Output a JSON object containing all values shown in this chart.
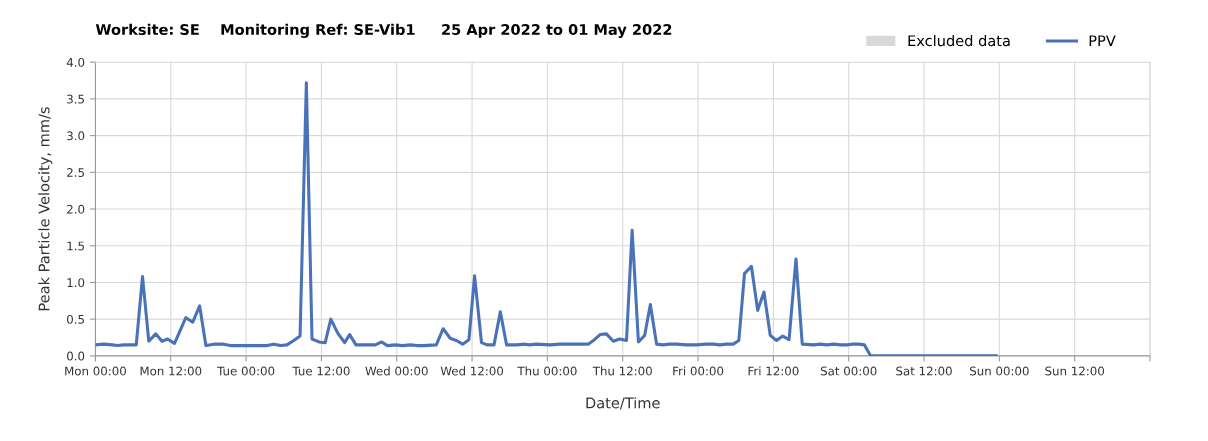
{
  "chart_data": {
    "type": "line",
    "title": "Worksite: SE    Monitoring Ref: SE-Vib1     25 Apr 2022 to 01 May 2022",
    "xlabel": "Date/Time",
    "ylabel": "Peak Particle Velocity, mm/s",
    "xlim": [
      "2022-04-25T00:00",
      "2022-05-02T00:00"
    ],
    "xticks": [
      {
        "value": "2022-04-25T00:00",
        "label": "Mon 00:00"
      },
      {
        "value": "2022-04-25T12:00",
        "label": "Mon 12:00"
      },
      {
        "value": "2022-04-26T00:00",
        "label": "Tue 00:00"
      },
      {
        "value": "2022-04-26T12:00",
        "label": "Tue 12:00"
      },
      {
        "value": "2022-04-27T00:00",
        "label": "Wed 00:00"
      },
      {
        "value": "2022-04-27T12:00",
        "label": "Wed 12:00"
      },
      {
        "value": "2022-04-28T00:00",
        "label": "Thu 00:00"
      },
      {
        "value": "2022-04-28T12:00",
        "label": "Thu 12:00"
      },
      {
        "value": "2022-04-29T00:00",
        "label": "Fri 00:00"
      },
      {
        "value": "2022-04-29T12:00",
        "label": "Fri 12:00"
      },
      {
        "value": "2022-04-30T00:00",
        "label": "Sat 00:00"
      },
      {
        "value": "2022-04-30T12:00",
        "label": "Sat 12:00"
      },
      {
        "value": "2022-05-01T00:00",
        "label": "Sun 00:00"
      },
      {
        "value": "2022-05-01T12:00",
        "label": "Sun 12:00"
      },
      {
        "value": "2022-05-02T00:00",
        "label": null
      }
    ],
    "ylim": [
      0,
      4
    ],
    "yticks": [
      {
        "value": 0,
        "label": "0.0"
      },
      {
        "value": 0.5,
        "label": "0.5"
      },
      {
        "value": 1,
        "label": "1.0"
      },
      {
        "value": 1.5,
        "label": "1.5"
      },
      {
        "value": 2,
        "label": "2.0"
      },
      {
        "value": 2.5,
        "label": "2.5"
      },
      {
        "value": 3,
        "label": "3.0"
      },
      {
        "value": 3.5,
        "label": "3.5"
      },
      {
        "value": 4,
        "label": "4.0"
      }
    ],
    "grid": true,
    "legend": "top right",
    "line_style": "solid",
    "marker": "none",
    "series": [
      {
        "name": "Excluded data",
        "type": "area",
        "color": "#d9d9d9"
      },
      {
        "name": "PPV",
        "color": "#4a72b8",
        "x": [
          "2022-04-25T00:00",
          "2022-04-25T01:18",
          "2022-04-25T02:42",
          "2022-04-25T03:30",
          "2022-04-25T04:30",
          "2022-04-25T06:30",
          "2022-04-25T07:30",
          "2022-04-25T08:30",
          "2022-04-25T09:36",
          "2022-04-25T10:36",
          "2022-04-25T11:30",
          "2022-04-25T12:36",
          "2022-04-25T14:24",
          "2022-04-25T15:30",
          "2022-04-25T16:36",
          "2022-04-25T17:36",
          "2022-04-25T18:54",
          "2022-04-25T20:24",
          "2022-04-25T21:30",
          "2022-04-26T00:12",
          "2022-04-26T03:18",
          "2022-04-26T04:24",
          "2022-04-26T05:30",
          "2022-04-26T06:30",
          "2022-04-26T07:36",
          "2022-04-26T08:36",
          "2022-04-26T09:36",
          "2022-04-26T10:30",
          "2022-04-26T11:36",
          "2022-04-26T12:36",
          "2022-04-26T13:30",
          "2022-04-26T14:36",
          "2022-04-26T15:42",
          "2022-04-26T16:30",
          "2022-04-26T17:30",
          "2022-04-26T19:18",
          "2022-04-26T20:36",
          "2022-04-26T21:36",
          "2022-04-26T22:30",
          "2022-04-26T23:48",
          "2022-04-27T00:54",
          "2022-04-27T02:12",
          "2022-04-27T03:12",
          "2022-04-27T04:18",
          "2022-04-27T06:18",
          "2022-04-27T07:24",
          "2022-04-27T08:30",
          "2022-04-27T09:30",
          "2022-04-27T10:30",
          "2022-04-27T11:30",
          "2022-04-27T12:24",
          "2022-04-27T13:30",
          "2022-04-27T14:24",
          "2022-04-27T15:30",
          "2022-04-27T16:30",
          "2022-04-27T17:30",
          "2022-04-27T19:06",
          "2022-04-27T20:24",
          "2022-04-27T21:12",
          "2022-04-27T22:12",
          "2022-04-28T00:24",
          "2022-04-28T02:00",
          "2022-04-28T04:36",
          "2022-04-28T06:30",
          "2022-04-28T07:30",
          "2022-04-28T08:24",
          "2022-04-28T09:24",
          "2022-04-28T10:30",
          "2022-04-28T11:30",
          "2022-04-28T12:36",
          "2022-04-28T13:30",
          "2022-04-28T14:30",
          "2022-04-28T15:30",
          "2022-04-28T16:24",
          "2022-04-28T17:24",
          "2022-04-28T18:24",
          "2022-04-28T19:30",
          "2022-04-28T20:36",
          "2022-04-28T22:06",
          "2022-04-28T23:42",
          "2022-04-29T01:18",
          "2022-04-29T02:24",
          "2022-04-29T03:30",
          "2022-04-29T04:30",
          "2022-04-29T05:36",
          "2022-04-29T06:30",
          "2022-04-29T07:24",
          "2022-04-29T08:30",
          "2022-04-29T09:30",
          "2022-04-29T10:30",
          "2022-04-29T11:30",
          "2022-04-29T12:30",
          "2022-04-29T13:30",
          "2022-04-29T14:30",
          "2022-04-29T15:36",
          "2022-04-29T16:36",
          "2022-04-29T18:24",
          "2022-04-29T19:30",
          "2022-04-29T20:30",
          "2022-04-29T21:36",
          "2022-04-29T22:42",
          "2022-04-29T23:42",
          "2022-04-30T00:30",
          "2022-04-30T01:36",
          "2022-04-30T02:30",
          "2022-04-30T03:30",
          "2022-04-30T12:30",
          "2022-04-30T23:30"
        ],
        "values": [
          0.15,
          0.16,
          0.15,
          0.14,
          0.15,
          0.15,
          1.08,
          0.2,
          0.3,
          0.2,
          0.23,
          0.17,
          0.52,
          0.46,
          0.68,
          0.14,
          0.16,
          0.16,
          0.14,
          0.14,
          0.14,
          0.16,
          0.14,
          0.15,
          0.21,
          0.27,
          3.72,
          0.23,
          0.19,
          0.18,
          0.5,
          0.31,
          0.18,
          0.29,
          0.15,
          0.15,
          0.15,
          0.19,
          0.14,
          0.15,
          0.14,
          0.15,
          0.14,
          0.14,
          0.15,
          0.37,
          0.24,
          0.21,
          0.16,
          0.22,
          1.09,
          0.18,
          0.15,
          0.15,
          0.6,
          0.15,
          0.15,
          0.16,
          0.15,
          0.16,
          0.15,
          0.16,
          0.16,
          0.16,
          0.22,
          0.29,
          0.3,
          0.2,
          0.23,
          0.21,
          1.71,
          0.19,
          0.28,
          0.7,
          0.16,
          0.15,
          0.16,
          0.16,
          0.15,
          0.15,
          0.16,
          0.16,
          0.15,
          0.16,
          0.16,
          0.21,
          1.12,
          1.22,
          0.62,
          0.87,
          0.28,
          0.21,
          0.27,
          0.22,
          1.32,
          0.16,
          0.15,
          0.16,
          0.15,
          0.16,
          0.15,
          0.15,
          0.16,
          0.16,
          0.15,
          0,
          0,
          0
        ]
      }
    ]
  }
}
